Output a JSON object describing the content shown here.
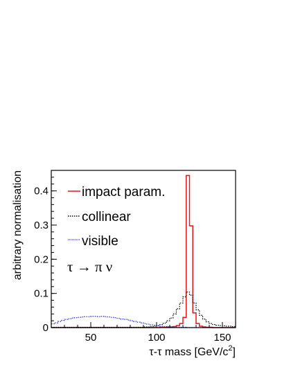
{
  "chart_data": {
    "type": "line",
    "style": "histogram-step",
    "xlabel": "τ-τ mass [GeV/c²]",
    "xlabel_parts": {
      "main": "τ-τ mass [GeV/c",
      "sup": "2",
      "end": "]"
    },
    "ylabel": "arbitrary normalisation",
    "xlim": [
      20,
      160
    ],
    "ylim": [
      0,
      0.46
    ],
    "xticks": [
      50,
      100,
      150
    ],
    "yticks": [
      0,
      0.1,
      0.2,
      0.3,
      0.4
    ],
    "ytick_labels": [
      "0",
      "0.1",
      "0.2",
      "0.3",
      "0.4"
    ],
    "bin_width": 2.5,
    "annotation": "τ → π ν",
    "legend_position": "top-left",
    "grid": false,
    "series": [
      {
        "name": "impact param.",
        "color": "#e8141d",
        "line": "solid",
        "x": [
          20,
          22.5,
          25,
          27.5,
          30,
          32.5,
          35,
          37.5,
          40,
          42.5,
          45,
          47.5,
          50,
          52.5,
          55,
          57.5,
          60,
          62.5,
          65,
          67.5,
          70,
          72.5,
          75,
          77.5,
          80,
          82.5,
          85,
          87.5,
          90,
          92.5,
          95,
          97.5,
          100,
          102.5,
          105,
          107.5,
          110,
          112.5,
          115,
          117.5,
          120,
          122.5,
          125,
          127.5,
          130,
          132.5,
          135,
          137.5,
          140,
          142.5,
          145,
          147.5,
          150,
          152.5,
          155,
          157.5
        ],
        "y": [
          0,
          0,
          0,
          0,
          0,
          0,
          0,
          0,
          0,
          0,
          0,
          0,
          0,
          0,
          0,
          0,
          0,
          0,
          0,
          0,
          0,
          0,
          0,
          0,
          0,
          0,
          0,
          0,
          0,
          0,
          0,
          0,
          0,
          0.001,
          0.001,
          0.002,
          0.002,
          0.003,
          0.006,
          0.012,
          0.03,
          0.445,
          0.298,
          0.043,
          0.012,
          0.004,
          0.002,
          0.001,
          0.001,
          0,
          0,
          0,
          0,
          0,
          0,
          0
        ]
      },
      {
        "name": "collinear",
        "color": "#000000",
        "line": "dotted",
        "x": [
          20,
          22.5,
          25,
          27.5,
          30,
          32.5,
          35,
          37.5,
          40,
          42.5,
          45,
          47.5,
          50,
          52.5,
          55,
          57.5,
          60,
          62.5,
          65,
          67.5,
          70,
          72.5,
          75,
          77.5,
          80,
          82.5,
          85,
          87.5,
          90,
          92.5,
          95,
          97.5,
          100,
          102.5,
          105,
          107.5,
          110,
          112.5,
          115,
          117.5,
          120,
          122.5,
          125,
          127.5,
          130,
          132.5,
          135,
          137.5,
          140,
          142.5,
          145,
          147.5,
          150,
          152.5,
          155,
          157.5
        ],
        "y": [
          0.001,
          0.001,
          0.001,
          0.001,
          0.001,
          0.001,
          0.001,
          0.001,
          0.001,
          0.001,
          0.001,
          0.001,
          0.001,
          0.001,
          0.001,
          0.001,
          0.001,
          0.001,
          0.001,
          0.001,
          0.001,
          0.001,
          0.001,
          0.001,
          0.001,
          0.001,
          0.001,
          0.001,
          0.002,
          0.002,
          0.003,
          0.004,
          0.006,
          0.009,
          0.013,
          0.02,
          0.028,
          0.04,
          0.055,
          0.072,
          0.09,
          0.104,
          0.095,
          0.072,
          0.052,
          0.036,
          0.025,
          0.017,
          0.012,
          0.009,
          0.007,
          0.006,
          0.005,
          0.004,
          0.004,
          0.003
        ]
      },
      {
        "name": "visible",
        "color": "#2b2bdc",
        "line": "dotted",
        "x": [
          20,
          22.5,
          25,
          27.5,
          30,
          32.5,
          35,
          37.5,
          40,
          42.5,
          45,
          47.5,
          50,
          52.5,
          55,
          57.5,
          60,
          62.5,
          65,
          67.5,
          70,
          72.5,
          75,
          77.5,
          80,
          82.5,
          85,
          87.5,
          90,
          92.5,
          95,
          97.5,
          100,
          102.5,
          105,
          107.5,
          110,
          112.5,
          115,
          117.5,
          120,
          122.5,
          125,
          127.5,
          130,
          132.5,
          135,
          137.5,
          140,
          142.5,
          145,
          147.5,
          150,
          152.5,
          155,
          157.5
        ],
        "y": [
          0.011,
          0.014,
          0.018,
          0.021,
          0.024,
          0.026,
          0.028,
          0.029,
          0.03,
          0.031,
          0.032,
          0.032,
          0.033,
          0.033,
          0.032,
          0.033,
          0.032,
          0.031,
          0.03,
          0.029,
          0.027,
          0.025,
          0.024,
          0.022,
          0.02,
          0.018,
          0.016,
          0.014,
          0.012,
          0.01,
          0.008,
          0.007,
          0.005,
          0.004,
          0.003,
          0.002,
          0.002,
          0.001,
          0.001,
          0.001,
          0.001,
          0,
          0,
          0,
          0,
          0,
          0,
          0,
          0,
          0,
          0,
          0,
          0,
          0,
          0,
          0
        ]
      }
    ]
  }
}
